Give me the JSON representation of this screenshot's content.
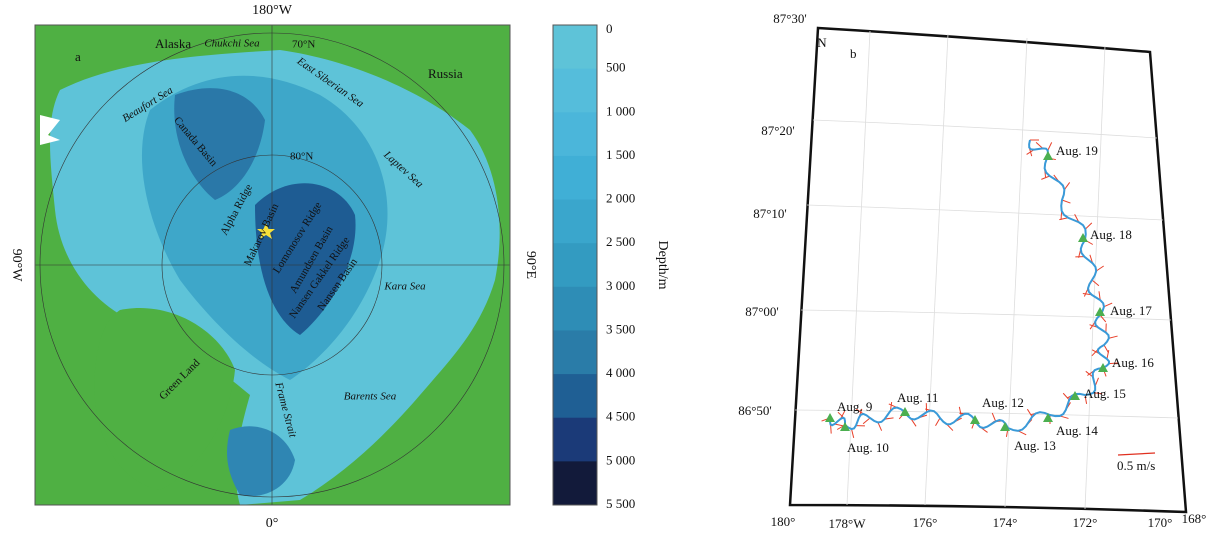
{
  "panel_a": {
    "label": "a",
    "axis_labels": {
      "top": "180°W",
      "bottom": "0°",
      "left": "90°W",
      "right": "90°E"
    },
    "lat_labels": [
      "70°N",
      "80°N"
    ],
    "places": {
      "alaska": "Alaska",
      "russia": "Russia",
      "chukchi": "Chukchi Sea",
      "east_siberian": "East Siberian Sea",
      "beaufort": "Beaufort Sea",
      "canada_basin": "Canada Basin",
      "laptev": "Laptev Sea",
      "alpha": "Alpha Ridge",
      "makarov": "Makarov Basin",
      "lomonosov": "Lomonosov Ridge",
      "amundsen": "Amundsen Basin",
      "gakkel": "Nansen Gakkel Ridge",
      "nansen": "Nansen Basin",
      "kara": "Kara Sea",
      "greenland": "Green Land",
      "fram": "Frame Strait",
      "barents": "Barents Sea"
    }
  },
  "colorbar": {
    "title": "Depth/m",
    "ticks": [
      "0",
      "500",
      "1 000",
      "1 500",
      "2 000",
      "2 500",
      "3 000",
      "3 500",
      "4 000",
      "4 500",
      "5 000",
      "5 500"
    ]
  },
  "panel_b": {
    "label": "b",
    "north": "N",
    "lat_labels": [
      "87°30'",
      "87°20'",
      "87°10'",
      "87°00'",
      "86°50'"
    ],
    "lon_labels": [
      "180°",
      "178°W",
      "176°",
      "174°",
      "172°",
      "170°",
      "168°"
    ],
    "dates": [
      "Aug. 19",
      "Aug. 18",
      "Aug. 17",
      "Aug. 16",
      "Aug. 15",
      "Aug. 14",
      "Aug. 13",
      "Aug. 12",
      "Aug. 11",
      "Aug. 10",
      "Aug. 9"
    ],
    "scale": "0.5 m/s"
  }
}
